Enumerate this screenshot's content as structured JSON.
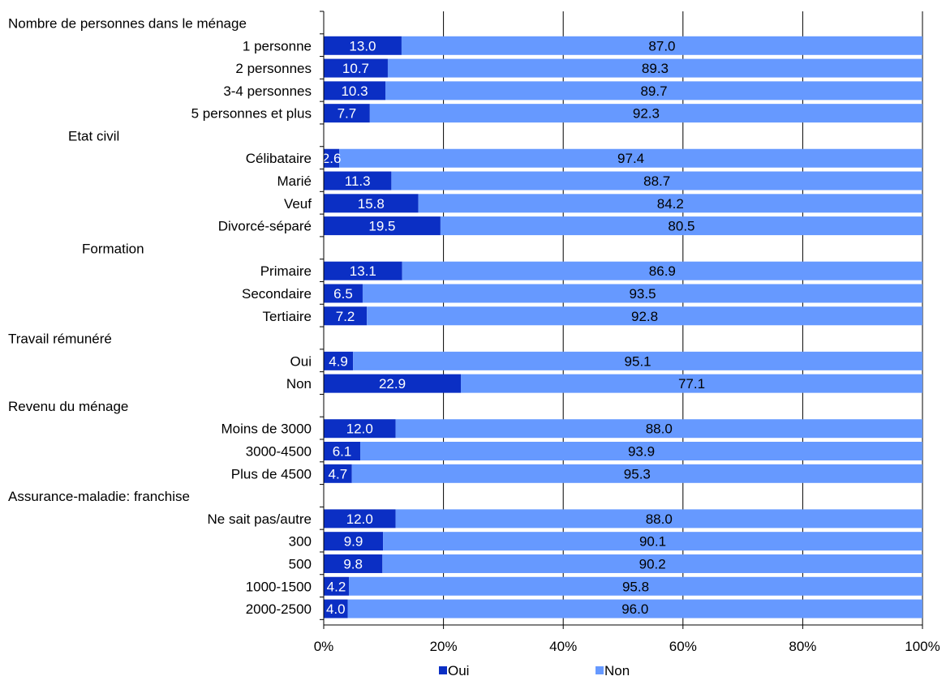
{
  "chart_data": {
    "type": "bar",
    "orientation": "horizontal",
    "stacked": true,
    "title": "",
    "xlabel": "",
    "ylabel": "",
    "xlim": [
      0,
      100
    ],
    "x_ticks": [
      "0%",
      "20%",
      "40%",
      "60%",
      "80%",
      "100%"
    ],
    "grid": "vertical gridlines",
    "legend_position": "bottom",
    "colors": {
      "Oui": "#0b2fc4",
      "Non": "#6699ff",
      "axis": "#000000",
      "grid": "#000000",
      "text": "#000000",
      "bar_label_oui": "#ffffff",
      "bar_label_non": "#000000"
    },
    "series": [
      {
        "name": "Oui"
      },
      {
        "name": "Non"
      }
    ],
    "rows": [
      {
        "label": "Nombre de personnes dans le ménage",
        "kind": "group"
      },
      {
        "label": "1 personne",
        "kind": "category",
        "oui": 13.0,
        "non": 87.0,
        "oui_label": "13.0",
        "non_label": "87.0"
      },
      {
        "label": "2 personnes",
        "kind": "category",
        "oui": 10.7,
        "non": 89.3,
        "oui_label": "10.7",
        "non_label": "89.3"
      },
      {
        "label": "3-4 personnes",
        "kind": "category",
        "oui": 10.3,
        "non": 89.7,
        "oui_label": "10.3",
        "non_label": "89.7"
      },
      {
        "label": "5 personnes et plus",
        "kind": "category",
        "oui": 7.7,
        "non": 92.3,
        "oui_label": "7.7",
        "non_label": "92.3"
      },
      {
        "label": "Etat civil",
        "kind": "group"
      },
      {
        "label": "Célibataire",
        "kind": "category",
        "oui": 2.6,
        "non": 97.4,
        "oui_label": "2.6",
        "non_label": "97.4"
      },
      {
        "label": "Marié",
        "kind": "category",
        "oui": 11.3,
        "non": 88.7,
        "oui_label": "11.3",
        "non_label": "88.7"
      },
      {
        "label": "Veuf",
        "kind": "category",
        "oui": 15.8,
        "non": 84.2,
        "oui_label": "15.8",
        "non_label": "84.2"
      },
      {
        "label": "Divorcé-séparé",
        "kind": "category",
        "oui": 19.5,
        "non": 80.5,
        "oui_label": "19.5",
        "non_label": "80.5"
      },
      {
        "label": "Formation",
        "kind": "group"
      },
      {
        "label": "Primaire",
        "kind": "category",
        "oui": 13.1,
        "non": 86.9,
        "oui_label": "13.1",
        "non_label": "86.9"
      },
      {
        "label": "Secondaire",
        "kind": "category",
        "oui": 6.5,
        "non": 93.5,
        "oui_label": "6.5",
        "non_label": "93.5"
      },
      {
        "label": "Tertiaire",
        "kind": "category",
        "oui": 7.2,
        "non": 92.8,
        "oui_label": "7.2",
        "non_label": "92.8"
      },
      {
        "label": "Travail rémunéré",
        "kind": "group"
      },
      {
        "label": "Oui",
        "kind": "category",
        "oui": 4.9,
        "non": 95.1,
        "oui_label": "4.9",
        "non_label": "95.1"
      },
      {
        "label": "Non",
        "kind": "category",
        "oui": 22.9,
        "non": 77.1,
        "oui_label": "22.9",
        "non_label": "77.1"
      },
      {
        "label": "Revenu du ménage",
        "kind": "group"
      },
      {
        "label": "Moins de 3000",
        "kind": "category",
        "oui": 12.0,
        "non": 88.0,
        "oui_label": "12.0",
        "non_label": "88.0"
      },
      {
        "label": "3000-4500",
        "kind": "category",
        "oui": 6.1,
        "non": 93.9,
        "oui_label": "6.1",
        "non_label": "93.9"
      },
      {
        "label": "Plus de 4500",
        "kind": "category",
        "oui": 4.7,
        "non": 95.3,
        "oui_label": "4.7",
        "non_label": "95.3"
      },
      {
        "label": "Assurance-maladie: franchise",
        "kind": "group"
      },
      {
        "label": "Ne sait pas/autre",
        "kind": "category",
        "oui": 12.0,
        "non": 88.0,
        "oui_label": "12.0",
        "non_label": "88.0"
      },
      {
        "label": "300",
        "kind": "category",
        "oui": 9.9,
        "non": 90.1,
        "oui_label": "9.9",
        "non_label": "90.1"
      },
      {
        "label": "500",
        "kind": "category",
        "oui": 9.8,
        "non": 90.2,
        "oui_label": "9.8",
        "non_label": "90.2"
      },
      {
        "label": "1000-1500",
        "kind": "category",
        "oui": 4.2,
        "non": 95.8,
        "oui_label": "4.2",
        "non_label": "95.8"
      },
      {
        "label": "2000-2500",
        "kind": "category",
        "oui": 4.0,
        "non": 96.0,
        "oui_label": "4.0",
        "non_label": "96.0"
      }
    ]
  }
}
